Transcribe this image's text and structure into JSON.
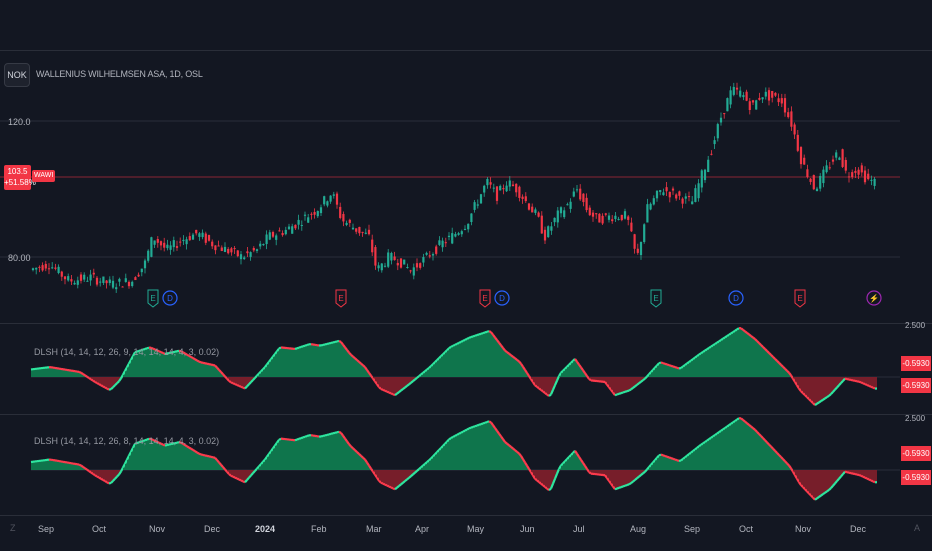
{
  "chart": {
    "currency": "NOK",
    "title": "WALLENIUS WILHELMSEN ASA, 1D, OSL",
    "ticker": "WAWI",
    "last_price": "103.5",
    "change_pct": "+51.58%",
    "price_levels": [
      "120.0",
      "80.00"
    ],
    "event_markers": [
      "E",
      "D",
      "E",
      "E",
      "D",
      "E",
      "D",
      "E",
      "⚡"
    ]
  },
  "indicators": [
    {
      "label": "DLSH (14, 14, 12, 26, 9, 14, 14, 14, 4, 3, 0.02)",
      "scale_top": "2.500",
      "value_a": "-0.5930",
      "value_b": "-0.5930"
    },
    {
      "label": "DLSH (14, 14, 12, 26, 8, 14, 14, 14, 4, 3, 0.02)",
      "scale_top": "2.500",
      "value_a": "-0.5930",
      "value_b": "-0.5930"
    }
  ],
  "time_axis": [
    "Sep",
    "Oct",
    "Nov",
    "Dec",
    "2024",
    "Feb",
    "Mar",
    "Apr",
    "May",
    "Jun",
    "Jul",
    "Aug",
    "Sep",
    "Oct",
    "Nov",
    "Dec"
  ],
  "colors": {
    "up": "#22ab94",
    "down": "#f23645",
    "bull_fill": "#0f7a4f",
    "bear_fill": "#7c1f2b",
    "bull_line": "#2ee8a0",
    "bear_line": "#ff3b4d"
  },
  "chart_data": {
    "type": "candlestick",
    "series": [
      {
        "name": "WAWI",
        "values": [
          [
            9,
            72
          ],
          [
            31,
            76
          ],
          [
            52,
            78
          ],
          [
            72,
            73
          ],
          [
            94,
            74
          ],
          [
            115,
            72
          ],
          [
            135,
            73
          ],
          [
            148,
            78
          ],
          [
            156,
            86
          ],
          [
            170,
            82
          ],
          [
            185,
            85
          ],
          [
            200,
            87
          ],
          [
            215,
            84
          ],
          [
            230,
            82
          ],
          [
            245,
            80
          ],
          [
            260,
            82
          ],
          [
            272,
            86
          ],
          [
            290,
            88
          ],
          [
            305,
            91
          ],
          [
            320,
            94
          ],
          [
            335,
            99
          ],
          [
            345,
            91
          ],
          [
            360,
            88
          ],
          [
            372,
            86
          ],
          [
            380,
            76
          ],
          [
            392,
            80
          ],
          [
            402,
            79
          ],
          [
            414,
            76
          ],
          [
            430,
            80
          ],
          [
            445,
            84
          ],
          [
            455,
            86
          ],
          [
            470,
            90
          ],
          [
            480,
            96
          ],
          [
            490,
            102
          ],
          [
            500,
            98
          ],
          [
            510,
            102
          ],
          [
            520,
            100
          ],
          [
            530,
            96
          ],
          [
            540,
            92
          ],
          [
            548,
            86
          ],
          [
            560,
            92
          ],
          [
            570,
            95
          ],
          [
            580,
            100
          ],
          [
            590,
            94
          ],
          [
            600,
            91
          ],
          [
            615,
            92
          ],
          [
            630,
            92
          ],
          [
            640,
            79
          ],
          [
            650,
            94
          ],
          [
            665,
            100
          ],
          [
            680,
            98
          ],
          [
            695,
            96
          ],
          [
            705,
            104
          ],
          [
            715,
            112
          ],
          [
            725,
            122
          ],
          [
            735,
            129
          ],
          [
            745,
            128
          ],
          [
            755,
            124
          ],
          [
            765,
            128
          ],
          [
            775,
            127
          ],
          [
            785,
            126
          ],
          [
            795,
            119
          ],
          [
            805,
            108
          ],
          [
            818,
            100
          ],
          [
            830,
            106
          ],
          [
            842,
            111
          ],
          [
            850,
            104
          ],
          [
            860,
            106
          ],
          [
            870,
            103
          ],
          [
            876,
            102
          ]
        ]
      }
    ],
    "ylim": [
      70,
      132
    ]
  },
  "osc_data": [
    9,
    0.4,
    30,
    0.45,
    50,
    0.6,
    80,
    0.3,
    95,
    -0.3,
    110,
    -0.8,
    120,
    -0.2,
    135,
    1.5,
    150,
    1.8,
    165,
    1.4,
    180,
    1.6,
    200,
    0.9,
    215,
    0.7,
    230,
    -0.3,
    245,
    -0.7,
    265,
    0.6,
    280,
    1.8,
    295,
    1.7,
    310,
    2.0,
    320,
    1.9,
    340,
    2.2,
    350,
    1.4,
    365,
    0.6,
    380,
    -0.7,
    395,
    -1.1,
    410,
    -0.4,
    430,
    0.6,
    450,
    1.8,
    470,
    2.4,
    490,
    2.8,
    505,
    1.6,
    520,
    0.9,
    535,
    -0.5,
    550,
    -1.2,
    560,
    0.2,
    575,
    1.1,
    590,
    -0.2,
    605,
    -0.3,
    615,
    -1.1,
    630,
    -0.8,
    645,
    -0.1,
    660,
    0.9,
    680,
    0.5,
    700,
    1.4,
    720,
    2.2,
    740,
    3.0,
    755,
    2.3,
    770,
    1.4,
    790,
    0.2,
    800,
    -0.8,
    815,
    -1.7,
    830,
    -1.1,
    845,
    -0.1,
    860,
    -0.3,
    875,
    -0.7
  ]
}
